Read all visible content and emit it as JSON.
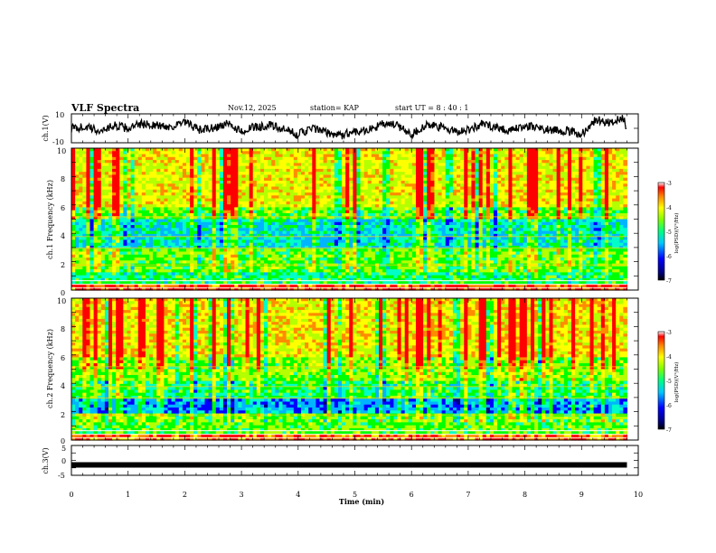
{
  "header": {
    "title": "VLF Spectra",
    "date": "Nov.12, 2025",
    "station": "station= KAP",
    "start_ut": "start  UT  =   8  : 40 : 1"
  },
  "chart_data": [
    {
      "type": "line",
      "panel": "ch1-waveform",
      "ylabel": "ch.1(V)",
      "xlim": [
        0,
        10
      ],
      "ylim": [
        -10,
        10
      ],
      "yticks": [
        {
          "value": 10,
          "label": "10"
        },
        {
          "value": -10,
          "label": "-10"
        }
      ],
      "x": [
        0,
        0.25,
        0.5,
        0.75,
        1.0,
        1.25,
        1.5,
        1.75,
        2.0,
        2.25,
        2.5,
        2.75,
        3.0,
        3.25,
        3.5,
        3.75,
        4.0,
        4.25,
        4.5,
        4.75,
        5.0,
        5.25,
        5.5,
        5.75,
        6.0,
        6.25,
        6.5,
        6.75,
        7.0,
        7.25,
        7.5,
        7.75,
        8.0,
        8.25,
        8.5,
        8.75,
        9.0,
        9.25,
        9.5,
        9.75,
        9.8
      ],
      "values": [
        0,
        1,
        -2,
        2,
        0,
        3,
        2,
        1,
        4,
        -1,
        0,
        3,
        -2,
        1,
        2,
        -1,
        -4,
        0,
        -3,
        -5,
        -2,
        -1,
        3,
        2,
        -4,
        2,
        1,
        -2,
        -1,
        3,
        1,
        -2,
        2,
        0,
        -1,
        -2,
        -4,
        6,
        4,
        7,
        -5
      ]
    },
    {
      "type": "heatmap",
      "panel": "ch1-spectrogram",
      "ylabel": "ch.1 Frequency  (kHz)",
      "xlim": [
        0,
        10
      ],
      "ylim": [
        0,
        10
      ],
      "yticks": [
        0,
        2,
        4,
        6,
        8,
        10
      ],
      "colorbar": {
        "label": "log(PSD)(V²/Hz)",
        "range": [
          -7,
          -3
        ],
        "ticks": [
          -3,
          -4,
          -5,
          -6,
          -7
        ]
      }
    },
    {
      "type": "heatmap",
      "panel": "ch2-spectrogram",
      "ylabel": "ch.2 Frequency  (kHz)",
      "xlim": [
        0,
        10
      ],
      "ylim": [
        0,
        10
      ],
      "yticks": [
        0,
        2,
        4,
        6,
        8,
        10
      ],
      "colorbar": {
        "label": "log(PSD)(V²/Hz)",
        "range": [
          -7,
          -3
        ],
        "ticks": [
          -3,
          -4,
          -5,
          -6,
          -7
        ]
      }
    },
    {
      "type": "line",
      "panel": "ch3-waveform",
      "ylabel": "ch.3(V)",
      "xlim": [
        0,
        10
      ],
      "ylim": [
        -5,
        5
      ],
      "yticks": [
        {
          "value": 5,
          "label": "5"
        },
        {
          "value": 0,
          "label": "0"
        },
        {
          "value": -5,
          "label": "-5"
        }
      ],
      "x": [
        0,
        9.8
      ],
      "values": [
        -1.5,
        -1.5
      ]
    }
  ],
  "xaxis": {
    "label": "Time  (min)",
    "ticks": [
      {
        "value": 0,
        "label": "0"
      },
      {
        "value": 1,
        "label": "1"
      },
      {
        "value": 2,
        "label": "2"
      },
      {
        "value": 3,
        "label": "3"
      },
      {
        "value": 4,
        "label": "4"
      },
      {
        "value": 5,
        "label": "5"
      },
      {
        "value": 6,
        "label": "6"
      },
      {
        "value": 7,
        "label": "7"
      },
      {
        "value": 8,
        "label": "8"
      },
      {
        "value": 9,
        "label": "9"
      },
      {
        "value": 10,
        "label": "10"
      }
    ]
  },
  "colors": {
    "frame": "#000000",
    "trace": "#000000",
    "spectrum_scale": [
      "#00007f",
      "#0000ff",
      "#00b4ff",
      "#00ffc8",
      "#00ff00",
      "#b4ff00",
      "#ffff00",
      "#ff8c00",
      "#ff0000"
    ]
  }
}
